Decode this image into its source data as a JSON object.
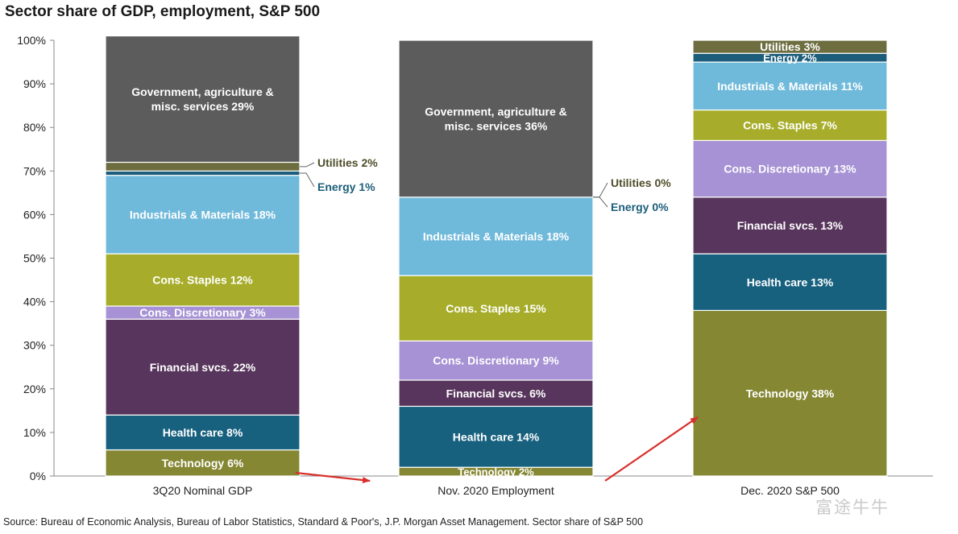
{
  "chart_data": {
    "type": "bar",
    "stacked": true,
    "title": "Sector share of GDP, employment, S&P 500",
    "xlabel": "",
    "ylabel": "",
    "ylim": [
      0,
      100
    ],
    "yticks": [
      "0%",
      "10%",
      "20%",
      "30%",
      "40%",
      "50%",
      "60%",
      "70%",
      "80%",
      "90%",
      "100%"
    ],
    "categories": [
      "3Q20 Nominal GDP",
      "Nov. 2020 Employment",
      "Dec. 2020 S&P 500"
    ],
    "series": [
      {
        "key": "technology",
        "name": "Technology",
        "color": "#858733",
        "label_color": "#ffffff",
        "values": [
          6,
          2,
          38
        ]
      },
      {
        "key": "health_care",
        "name": "Health care",
        "color": "#17617f",
        "label_color": "#ffffff",
        "values": [
          8,
          14,
          13
        ]
      },
      {
        "key": "financial",
        "name": "Financial svcs.",
        "color": "#57355c",
        "label_color": "#ffffff",
        "values": [
          22,
          6,
          13
        ]
      },
      {
        "key": "cons_discretionary",
        "name": "Cons. Discretionary",
        "color": "#a692d4",
        "label_color": "#ffffff",
        "values": [
          3,
          9,
          13
        ]
      },
      {
        "key": "cons_staples",
        "name": "Cons. Staples",
        "color": "#a7ad2a",
        "label_color": "#ffffff",
        "values": [
          12,
          15,
          7
        ]
      },
      {
        "key": "industrials",
        "name": "Industrials & Materials",
        "color": "#6fb9da",
        "label_color": "#ffffff",
        "values": [
          18,
          18,
          11
        ]
      },
      {
        "key": "energy",
        "name": "Energy",
        "color": "#1b5d7a",
        "label_color": "#ffffff",
        "values": [
          1,
          0,
          2
        ]
      },
      {
        "key": "utilities",
        "name": "Utilities",
        "color": "#6d6d3f",
        "label_color": "#ffffff",
        "values": [
          2,
          0,
          3
        ]
      },
      {
        "key": "government",
        "name": "Government, agriculture & misc. services",
        "color": "#5c5c5c",
        "label_color": "#ffffff",
        "values": [
          29,
          36,
          0
        ]
      }
    ],
    "segment_labels": [
      [
        "Technology 6%",
        "Health care 8%",
        "Financial svcs. 22%",
        "Cons. Discretionary 3%",
        "Cons. Staples 12%",
        "Industrials & Materials 18%",
        "",
        "",
        "Government, agriculture &|misc. services 29%"
      ],
      [
        "Technology 2%",
        "Health care 14%",
        "Financial svcs. 6%",
        "Cons. Discretionary 9%",
        "Cons. Staples 15%",
        "Industrials & Materials 18%",
        "",
        "",
        "Government, agriculture &|misc. services 36%"
      ],
      [
        "Technology 38%",
        "Health care 13%",
        "Financial svcs. 13%",
        "Cons. Discretionary 13%",
        "Cons. Staples 7%",
        "Industrials & Materials 11%",
        "Energy 2%",
        "Utilities 3%",
        ""
      ]
    ],
    "callouts": [
      {
        "bar": 0,
        "series": "utilities",
        "text": "Utilities 2%",
        "color": "#4d4d2a"
      },
      {
        "bar": 0,
        "series": "energy",
        "text": "Energy 1%",
        "color": "#1b5d7a"
      },
      {
        "bar": 1,
        "series": "utilities",
        "text": "Utilities 0%",
        "color": "#4d4d2a"
      },
      {
        "bar": 1,
        "series": "energy",
        "text": "Energy 0%",
        "color": "#1b5d7a"
      }
    ],
    "annotation_arrows": [
      {
        "from_bar": 0,
        "to_bar": 1,
        "color": "#d9302c"
      },
      {
        "from_bar": 1,
        "to_bar": 2,
        "color": "#d9302c"
      }
    ]
  },
  "source_note": "Source: Bureau of Economic Analysis, Bureau of Labor Statistics, Standard & Poor's, J.P. Morgan Asset Management. Sector share of S&P 500",
  "watermark": "富途牛牛"
}
